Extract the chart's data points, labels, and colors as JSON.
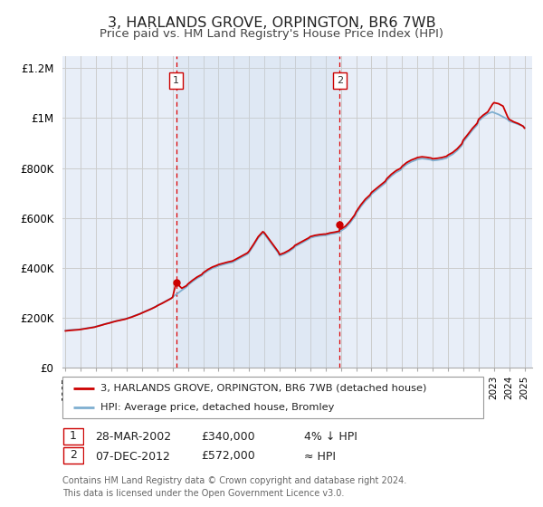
{
  "title": "3, HARLANDS GROVE, ORPINGTON, BR6 7WB",
  "subtitle": "Price paid vs. HM Land Registry's House Price Index (HPI)",
  "title_fontsize": 11.5,
  "subtitle_fontsize": 9.5,
  "background_color": "#ffffff",
  "plot_bg_color": "#e8eef8",
  "grid_color": "#cccccc",
  "hpi_color": "#7fafd0",
  "sale_color": "#cc0000",
  "legend_label_sale": "3, HARLANDS GROVE, ORPINGTON, BR6 7WB (detached house)",
  "legend_label_hpi": "HPI: Average price, detached house, Bromley",
  "annotation1_label": "1",
  "annotation1_date": "28-MAR-2002",
  "annotation1_price": "£340,000",
  "annotation1_hpi": "4% ↓ HPI",
  "annotation2_label": "2",
  "annotation2_date": "07-DEC-2012",
  "annotation2_price": "£572,000",
  "annotation2_hpi": "≈ HPI",
  "footer": "Contains HM Land Registry data © Crown copyright and database right 2024.\nThis data is licensed under the Open Government Licence v3.0.",
  "ylim": [
    0,
    1250000
  ],
  "yticks": [
    0,
    200000,
    400000,
    600000,
    800000,
    1000000,
    1200000
  ],
  "ytick_labels": [
    "£0",
    "£200K",
    "£400K",
    "£600K",
    "£800K",
    "£1M",
    "£1.2M"
  ],
  "sale1_x": 2002.23,
  "sale1_y": 340000,
  "sale2_x": 2012.93,
  "sale2_y": 572000,
  "vline1_x": 2002.23,
  "vline2_x": 2012.93,
  "xmin": 1994.8,
  "xmax": 2025.5
}
